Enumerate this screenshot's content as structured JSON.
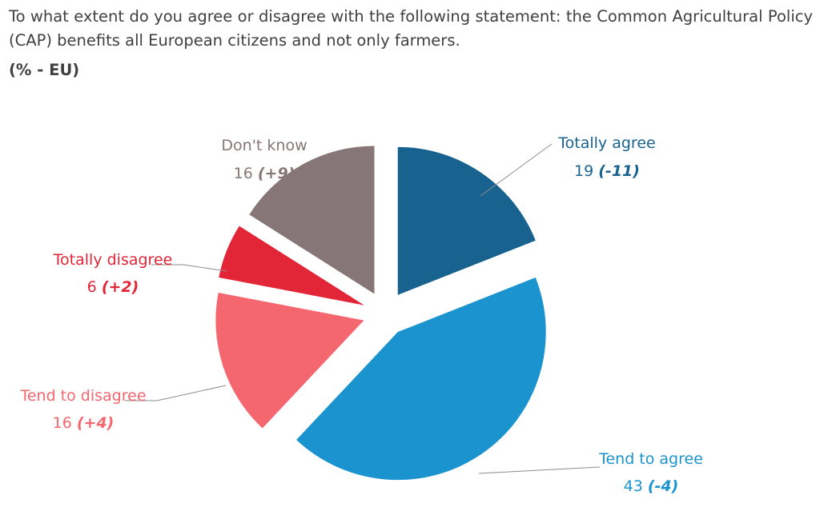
{
  "question": "To what extent do you agree or disagree with the following statement: the Common Agricultural Policy (CAP) benefits all European citizens and not only farmers.",
  "scope": "(% - EU)",
  "chart_data": {
    "type": "pie",
    "slices": [
      {
        "label": "Totally agree",
        "value": 19,
        "change": "(-11)",
        "color": "#17628f"
      },
      {
        "label": "Tend to agree",
        "value": 43,
        "change": "(-4)",
        "color": "#1a93ce"
      },
      {
        "label": "Tend to disagree",
        "value": 16,
        "change": "(+4)",
        "color": "#f4676f"
      },
      {
        "label": "Totally disagree",
        "value": 6,
        "change": "(+2)",
        "color": "#e22637"
      },
      {
        "label": "Don't know",
        "value": 16,
        "change": "(+9)",
        "color": "#877678"
      }
    ]
  }
}
